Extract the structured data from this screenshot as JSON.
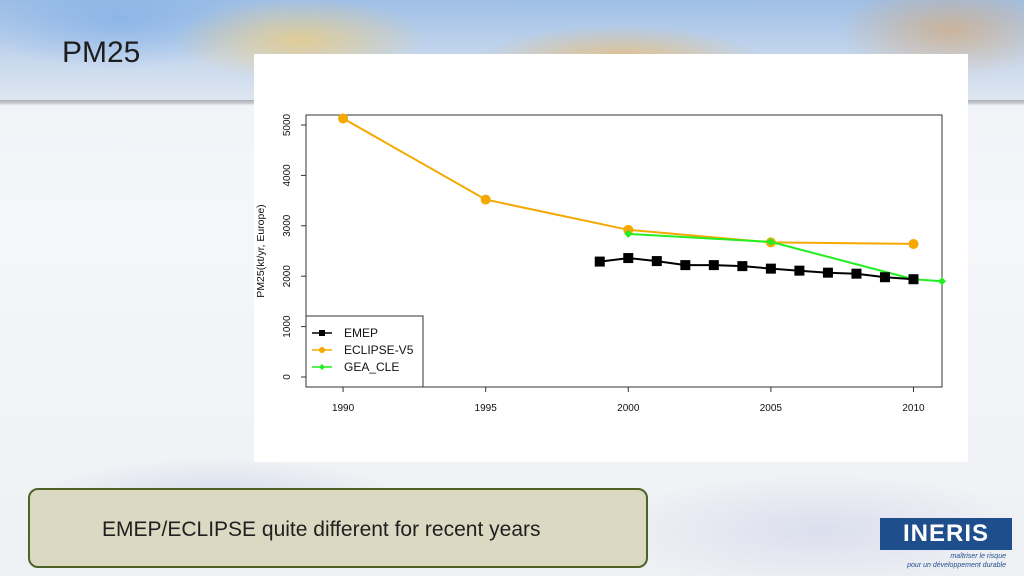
{
  "slide": {
    "title": "PM25",
    "callout": "EMEP/ECLIPSE quite different for recent years"
  },
  "logo": {
    "name": "INERIS",
    "tagline": "maîtriser le risque\npour un développement durable"
  },
  "colors": {
    "emep": "#000000",
    "eclipse": "#f5a800",
    "gea": "#22ee22"
  },
  "chart_data": {
    "type": "line",
    "ylabel": "PM25(kt/yr, Europe)",
    "xlabel": "",
    "title": "",
    "xlim": [
      1990,
      2011
    ],
    "ylim": [
      0,
      5000
    ],
    "xticks": [
      1990,
      1995,
      2000,
      2005,
      2010
    ],
    "yticks": [
      0,
      1000,
      2000,
      3000,
      4000,
      5000
    ],
    "legend_position": "bottom-left",
    "series": [
      {
        "name": "EMEP",
        "marker": "square",
        "x": [
          1999,
          2000,
          2001,
          2002,
          2003,
          2004,
          2005,
          2006,
          2007,
          2008,
          2009,
          2010
        ],
        "y": [
          2290,
          2360,
          2300,
          2220,
          2220,
          2200,
          2150,
          2110,
          2070,
          2050,
          1980,
          1940
        ]
      },
      {
        "name": "ECLIPSE-V5",
        "marker": "circle",
        "x": [
          1990,
          1995,
          2000,
          2005,
          2010
        ],
        "y": [
          5130,
          3520,
          2920,
          2670,
          2640
        ]
      },
      {
        "name": "GEA_CLE",
        "marker": "diamond",
        "x": [
          2000,
          2005,
          2010,
          2011
        ],
        "y": [
          2840,
          2680,
          1940,
          1900
        ]
      }
    ]
  }
}
